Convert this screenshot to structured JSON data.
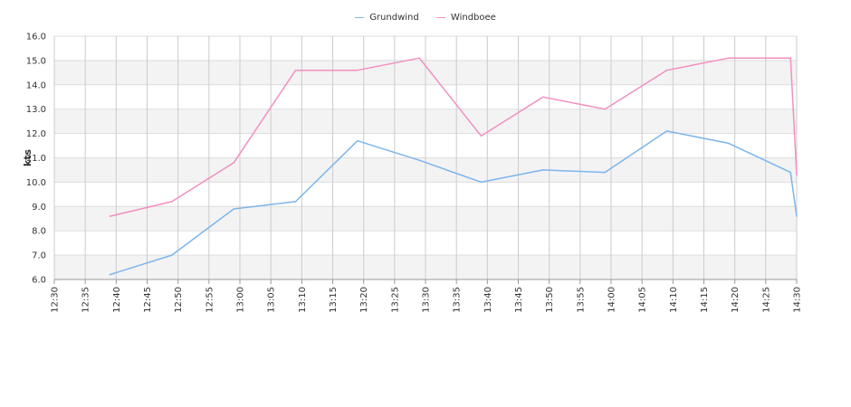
{
  "chart_data": {
    "type": "line",
    "ylabel": "kts",
    "ylim": [
      6.0,
      16.0
    ],
    "xlim": [
      "12:30",
      "14:30"
    ],
    "y_ticks": [
      "6.0",
      "7.0",
      "8.0",
      "9.0",
      "10.0",
      "11.0",
      "12.0",
      "13.0",
      "14.0",
      "15.0",
      "16.0"
    ],
    "x_ticks": [
      "12:30",
      "12:35",
      "12:40",
      "12:45",
      "12:50",
      "12:55",
      "13:00",
      "13:05",
      "13:10",
      "13:15",
      "13:20",
      "13:25",
      "13:30",
      "13:35",
      "13:40",
      "13:45",
      "13:50",
      "13:55",
      "14:00",
      "14:05",
      "14:10",
      "14:15",
      "14:20",
      "14:25",
      "14:30"
    ],
    "legend_position": "top-center",
    "grid": true,
    "series": [
      {
        "name": "Grundwind",
        "color": "#7cb5ec",
        "x": [
          "12:39",
          "12:49",
          "12:59",
          "13:09",
          "13:19",
          "13:29",
          "13:39",
          "13:49",
          "13:59",
          "14:09",
          "14:19",
          "14:29",
          "14:30"
        ],
        "values": [
          6.2,
          7.0,
          8.9,
          9.2,
          11.7,
          10.9,
          10.0,
          10.5,
          10.4,
          12.1,
          11.6,
          10.4,
          8.6
        ]
      },
      {
        "name": "Windboee",
        "color": "#f28fc0",
        "x": [
          "12:39",
          "12:49",
          "12:59",
          "13:09",
          "13:19",
          "13:29",
          "13:39",
          "13:49",
          "13:59",
          "14:09",
          "14:19",
          "14:29",
          "14:30"
        ],
        "values": [
          8.6,
          9.2,
          10.8,
          14.6,
          14.6,
          15.1,
          11.9,
          13.5,
          13.0,
          14.6,
          15.1,
          15.1,
          10.3
        ]
      }
    ]
  }
}
